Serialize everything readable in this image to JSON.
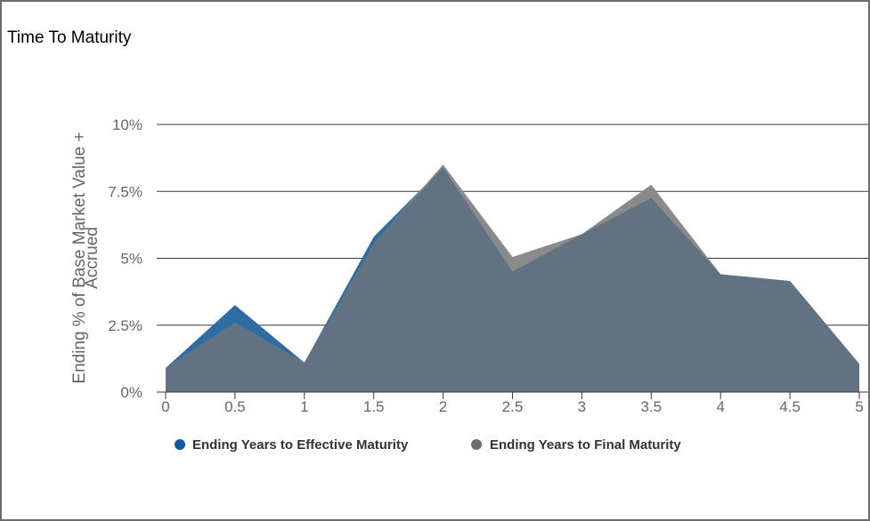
{
  "title": "Time To Maturity",
  "chart_data": {
    "type": "area",
    "title": "Time To Maturity",
    "ylabel_lines": [
      "Ending % of Base Market Value +",
      "Accrued"
    ],
    "xlabel": "",
    "x": [
      0,
      0.5,
      1,
      1.5,
      2,
      2.5,
      3,
      3.5,
      4,
      4.5,
      5
    ],
    "x_tick_labels": [
      "0",
      "0.5",
      "1",
      "1.5",
      "2",
      "2.5",
      "3",
      "3.5",
      "4",
      "4.5",
      "5"
    ],
    "y_tick_values": [
      0,
      2.5,
      5,
      7.5,
      10
    ],
    "y_tick_labels": [
      "0%",
      "2.5%",
      "5%",
      "7.5%",
      "10%"
    ],
    "ylim": [
      0,
      10
    ],
    "xlim": [
      0,
      5
    ],
    "grid": true,
    "legend_position": "bottom",
    "series": [
      {
        "name": "Ending Years to Effective Maturity",
        "color": "#2e6da4",
        "values": [
          0.9,
          3.25,
          1.1,
          5.8,
          8.4,
          4.5,
          5.9,
          7.25,
          4.4,
          4.15,
          1.05
        ]
      },
      {
        "name": "Ending Years to Final Maturity",
        "color": "#8a8a8a",
        "values": [
          0.9,
          2.6,
          1.1,
          5.55,
          8.5,
          5.05,
          5.9,
          7.75,
          4.4,
          4.15,
          1.05
        ]
      }
    ],
    "overlap_color": "#617282"
  }
}
